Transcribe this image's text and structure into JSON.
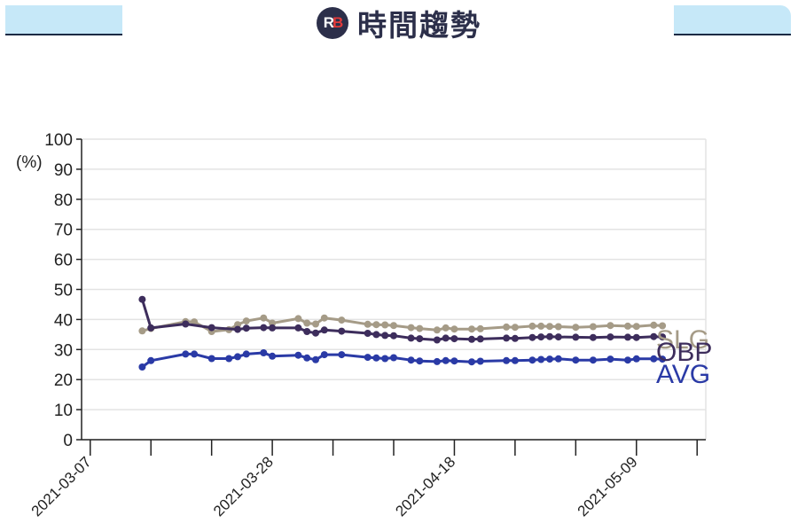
{
  "header": {
    "logo_text_r": "R",
    "logo_text_b": "B",
    "title": "時間趨勢"
  },
  "colors": {
    "slg": "#a59b87",
    "obp": "#3d2d5c",
    "avg": "#2a3aa6"
  },
  "chart_data": {
    "type": "line",
    "title": "",
    "xlabel": "",
    "ylabel": "(%)",
    "ylim": [
      0,
      100
    ],
    "yticks": [
      0,
      10,
      20,
      30,
      40,
      50,
      60,
      70,
      80,
      90,
      100
    ],
    "xlim": [
      "2021-03-06",
      "2021-05-17"
    ],
    "xtick_dates": [
      "2021-03-07",
      "2021-03-14",
      "2021-03-21",
      "2021-03-28",
      "2021-04-04",
      "2021-04-11",
      "2021-04-18",
      "2021-04-25",
      "2021-05-02",
      "2021-05-09",
      "2021-05-16"
    ],
    "xtick_labels": [
      "2021-03-07",
      "",
      "",
      "2021-03-28",
      "",
      "",
      "2021-04-18",
      "",
      "",
      "2021-05-09",
      ""
    ],
    "grid": true,
    "series": [
      {
        "name": "SLG",
        "points": [
          [
            "2021-03-13",
            36.2
          ],
          [
            "2021-03-14",
            37.0
          ],
          [
            "2021-03-18",
            39.3
          ],
          [
            "2021-03-19",
            39.2
          ],
          [
            "2021-03-21",
            36.0
          ],
          [
            "2021-03-23",
            36.6
          ],
          [
            "2021-03-24",
            38.3
          ],
          [
            "2021-03-25",
            39.5
          ],
          [
            "2021-03-27",
            40.5
          ],
          [
            "2021-03-28",
            38.8
          ],
          [
            "2021-04-00",
            40.3
          ],
          [
            "2021-04-01",
            38.8
          ],
          [
            "2021-04-02",
            38.5
          ],
          [
            "2021-04-03",
            40.5
          ],
          [
            "2021-04-05",
            39.8
          ],
          [
            "2021-04-08",
            38.4
          ],
          [
            "2021-04-09",
            38.3
          ],
          [
            "2021-04-10",
            38.2
          ],
          [
            "2021-04-11",
            38.0
          ],
          [
            "2021-04-13",
            37.3
          ],
          [
            "2021-04-14",
            37.0
          ],
          [
            "2021-04-16",
            36.5
          ],
          [
            "2021-04-17",
            37.2
          ],
          [
            "2021-04-18",
            36.8
          ],
          [
            "2021-04-20",
            36.8
          ],
          [
            "2021-04-21",
            36.9
          ],
          [
            "2021-04-24",
            37.5
          ],
          [
            "2021-04-25",
            37.4
          ],
          [
            "2021-04-27",
            37.8
          ],
          [
            "2021-04-28",
            37.8
          ],
          [
            "2021-04-29",
            37.7
          ],
          [
            "2021-04-30",
            37.6
          ],
          [
            "2021-05-02",
            37.4
          ],
          [
            "2021-05-04",
            37.6
          ],
          [
            "2021-05-06",
            38.0
          ],
          [
            "2021-05-08",
            37.8
          ],
          [
            "2021-05-09",
            37.7
          ],
          [
            "2021-05-11",
            38.1
          ],
          [
            "2021-05-12",
            37.9
          ]
        ]
      },
      {
        "name": "OBP",
        "points": [
          [
            "2021-03-13",
            46.7
          ],
          [
            "2021-03-14",
            37.2
          ],
          [
            "2021-03-18",
            38.5
          ],
          [
            "2021-03-21",
            37.3
          ],
          [
            "2021-03-24",
            36.7
          ],
          [
            "2021-03-25",
            37.1
          ],
          [
            "2021-03-27",
            37.3
          ],
          [
            "2021-03-28",
            37.2
          ],
          [
            "2021-04-00",
            37.2
          ],
          [
            "2021-04-01",
            36.0
          ],
          [
            "2021-04-02",
            35.5
          ],
          [
            "2021-04-03",
            36.5
          ],
          [
            "2021-04-05",
            36.1
          ],
          [
            "2021-04-08",
            35.4
          ],
          [
            "2021-04-09",
            35.0
          ],
          [
            "2021-04-10",
            34.7
          ],
          [
            "2021-04-11",
            34.6
          ],
          [
            "2021-04-13",
            33.8
          ],
          [
            "2021-04-14",
            33.6
          ],
          [
            "2021-04-16",
            33.2
          ],
          [
            "2021-04-17",
            33.8
          ],
          [
            "2021-04-18",
            33.6
          ],
          [
            "2021-04-20",
            33.4
          ],
          [
            "2021-04-21",
            33.5
          ],
          [
            "2021-04-24",
            33.8
          ],
          [
            "2021-04-25",
            33.7
          ],
          [
            "2021-04-27",
            34.0
          ],
          [
            "2021-04-28",
            34.2
          ],
          [
            "2021-04-29",
            34.3
          ],
          [
            "2021-04-30",
            34.2
          ],
          [
            "2021-05-02",
            34.1
          ],
          [
            "2021-05-04",
            34.0
          ],
          [
            "2021-05-06",
            34.2
          ],
          [
            "2021-05-08",
            34.1
          ],
          [
            "2021-05-09",
            34.0
          ],
          [
            "2021-05-11",
            34.3
          ],
          [
            "2021-05-12",
            34.2
          ]
        ]
      },
      {
        "name": "AVG",
        "points": [
          [
            "2021-03-13",
            24.2
          ],
          [
            "2021-03-14",
            26.3
          ],
          [
            "2021-03-18",
            28.5
          ],
          [
            "2021-03-19",
            28.5
          ],
          [
            "2021-03-21",
            27.0
          ],
          [
            "2021-03-23",
            27.0
          ],
          [
            "2021-03-24",
            27.6
          ],
          [
            "2021-03-25",
            28.5
          ],
          [
            "2021-03-27",
            28.9
          ],
          [
            "2021-03-28",
            27.8
          ],
          [
            "2021-04-00",
            28.1
          ],
          [
            "2021-04-01",
            27.2
          ],
          [
            "2021-04-02",
            26.6
          ],
          [
            "2021-04-03",
            28.3
          ],
          [
            "2021-04-05",
            28.3
          ],
          [
            "2021-04-08",
            27.4
          ],
          [
            "2021-04-09",
            27.2
          ],
          [
            "2021-04-10",
            27.0
          ],
          [
            "2021-04-11",
            27.3
          ],
          [
            "2021-04-13",
            26.5
          ],
          [
            "2021-04-14",
            26.2
          ],
          [
            "2021-04-16",
            26.0
          ],
          [
            "2021-04-17",
            26.3
          ],
          [
            "2021-04-18",
            26.2
          ],
          [
            "2021-04-20",
            25.9
          ],
          [
            "2021-04-21",
            26.1
          ],
          [
            "2021-04-24",
            26.3
          ],
          [
            "2021-04-25",
            26.3
          ],
          [
            "2021-04-27",
            26.5
          ],
          [
            "2021-04-28",
            26.7
          ],
          [
            "2021-04-29",
            26.8
          ],
          [
            "2021-04-30",
            26.9
          ],
          [
            "2021-05-02",
            26.5
          ],
          [
            "2021-05-04",
            26.5
          ],
          [
            "2021-05-06",
            26.8
          ],
          [
            "2021-05-08",
            26.5
          ],
          [
            "2021-05-09",
            26.9
          ],
          [
            "2021-05-11",
            26.9
          ],
          [
            "2021-05-12",
            26.8
          ]
        ]
      }
    ]
  }
}
